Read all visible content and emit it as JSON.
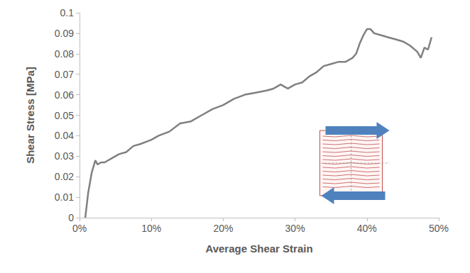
{
  "chart_data": {
    "type": "line",
    "x_label": "Average Shear Strain",
    "y_label": "Shear Stress [MPa]",
    "x": [
      0.8,
      1.2,
      1.7,
      2.2,
      2.5,
      3.0,
      3.5,
      4.5,
      5.5,
      6.5,
      7.5,
      8.5,
      10,
      11,
      12.5,
      14,
      15.5,
      17,
      18.5,
      20,
      21.5,
      23,
      24.5,
      26,
      27,
      28,
      28.5,
      29,
      30,
      31,
      32,
      33,
      34,
      35,
      36,
      37,
      38,
      38.5,
      39,
      39.5,
      40,
      40.5,
      41,
      42,
      43,
      44,
      45,
      46,
      47,
      47.5,
      48,
      48.5,
      49
    ],
    "series": [
      {
        "name": "Shear Stress",
        "color": "#808080",
        "values": [
          0,
          0.012,
          0.022,
          0.028,
          0.026,
          0.027,
          0.027,
          0.029,
          0.031,
          0.032,
          0.035,
          0.036,
          0.038,
          0.04,
          0.042,
          0.046,
          0.047,
          0.05,
          0.053,
          0.055,
          0.058,
          0.06,
          0.061,
          0.062,
          0.063,
          0.065,
          0.064,
          0.063,
          0.065,
          0.066,
          0.069,
          0.071,
          0.074,
          0.075,
          0.076,
          0.076,
          0.078,
          0.08,
          0.085,
          0.089,
          0.092,
          0.092,
          0.09,
          0.089,
          0.088,
          0.087,
          0.086,
          0.084,
          0.081,
          0.078,
          0.083,
          0.082,
          0.088
        ]
      }
    ],
    "xlim": [
      0,
      50
    ],
    "xticks": [
      {
        "value": 0,
        "label": "0%"
      },
      {
        "value": 10,
        "label": "10%"
      },
      {
        "value": 20,
        "label": "20%"
      },
      {
        "value": 30,
        "label": "30%"
      },
      {
        "value": 40,
        "label": "40%"
      },
      {
        "value": 50,
        "label": "50%"
      }
    ],
    "ylim": [
      0,
      0.1
    ],
    "yticks": [
      0,
      0.01,
      0.02,
      0.03,
      0.04,
      0.05,
      0.06,
      0.07,
      0.08,
      0.09,
      0.1
    ],
    "grid": false
  }
}
